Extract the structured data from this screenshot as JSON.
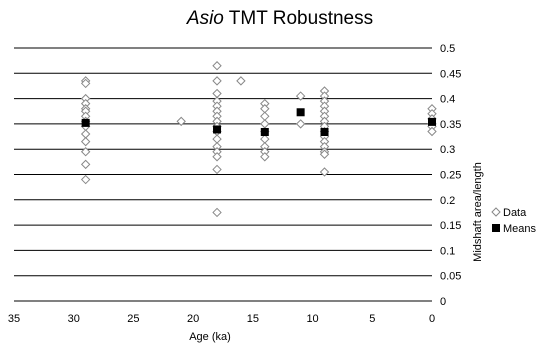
{
  "chart_data": {
    "type": "scatter",
    "title_italic": "Asio",
    "title_rest": " TMT Robustness",
    "xlabel": "Age (ka)",
    "ylabel": "Midshaft area/length",
    "xlim": [
      35,
      0
    ],
    "ylim": [
      0,
      0.5
    ],
    "x_reversed": true,
    "x_ticks": [
      "35",
      "30",
      "25",
      "20",
      "15",
      "10",
      "5",
      "0"
    ],
    "x_tick_values": [
      35,
      30,
      25,
      20,
      15,
      10,
      5,
      0
    ],
    "y_ticks": [
      "0",
      "0.05",
      "0.1",
      "0.15",
      "0.2",
      "0.25",
      "0.3",
      "0.35",
      "0.4",
      "0.45",
      "0.5"
    ],
    "y_tick_values": [
      0,
      0.05,
      0.1,
      0.15,
      0.2,
      0.25,
      0.3,
      0.35,
      0.4,
      0.45,
      0.5
    ],
    "grid": "horizontal",
    "legend_position": "right",
    "series": [
      {
        "name": "Data",
        "marker": "open-diamond",
        "color": "#888888",
        "points": [
          [
            29,
            0.435
          ],
          [
            29,
            0.43
          ],
          [
            29,
            0.4
          ],
          [
            29,
            0.39
          ],
          [
            29,
            0.38
          ],
          [
            29,
            0.375
          ],
          [
            29,
            0.365
          ],
          [
            29,
            0.355
          ],
          [
            29,
            0.345
          ],
          [
            29,
            0.33
          ],
          [
            29,
            0.315
          ],
          [
            29,
            0.295
          ],
          [
            29,
            0.27
          ],
          [
            29,
            0.24
          ],
          [
            21,
            0.355
          ],
          [
            18,
            0.465
          ],
          [
            18,
            0.435
          ],
          [
            18,
            0.41
          ],
          [
            18,
            0.395
          ],
          [
            18,
            0.385
          ],
          [
            18,
            0.375
          ],
          [
            18,
            0.365
          ],
          [
            18,
            0.355
          ],
          [
            18,
            0.345
          ],
          [
            18,
            0.335
          ],
          [
            18,
            0.32
          ],
          [
            18,
            0.305
          ],
          [
            18,
            0.295
          ],
          [
            18,
            0.285
          ],
          [
            18,
            0.26
          ],
          [
            18,
            0.175
          ],
          [
            16,
            0.435
          ],
          [
            14,
            0.39
          ],
          [
            14,
            0.38
          ],
          [
            14,
            0.365
          ],
          [
            14,
            0.35
          ],
          [
            14,
            0.335
          ],
          [
            14,
            0.32
          ],
          [
            14,
            0.305
          ],
          [
            14,
            0.295
          ],
          [
            14,
            0.285
          ],
          [
            11,
            0.405
          ],
          [
            11,
            0.35
          ],
          [
            9,
            0.415
          ],
          [
            9,
            0.405
          ],
          [
            9,
            0.395
          ],
          [
            9,
            0.385
          ],
          [
            9,
            0.375
          ],
          [
            9,
            0.365
          ],
          [
            9,
            0.355
          ],
          [
            9,
            0.345
          ],
          [
            9,
            0.335
          ],
          [
            9,
            0.325
          ],
          [
            9,
            0.315
          ],
          [
            9,
            0.305
          ],
          [
            9,
            0.295
          ],
          [
            9,
            0.29
          ],
          [
            9,
            0.255
          ],
          [
            0,
            0.38
          ],
          [
            0,
            0.37
          ],
          [
            0,
            0.36
          ],
          [
            0,
            0.35
          ],
          [
            0,
            0.345
          ],
          [
            0,
            0.335
          ]
        ]
      },
      {
        "name": "Means",
        "marker": "filled-square",
        "color": "#000000",
        "points": [
          [
            29,
            0.352
          ],
          [
            18,
            0.339
          ],
          [
            14,
            0.334
          ],
          [
            11,
            0.373
          ],
          [
            9,
            0.334
          ],
          [
            0,
            0.354
          ]
        ]
      }
    ]
  }
}
